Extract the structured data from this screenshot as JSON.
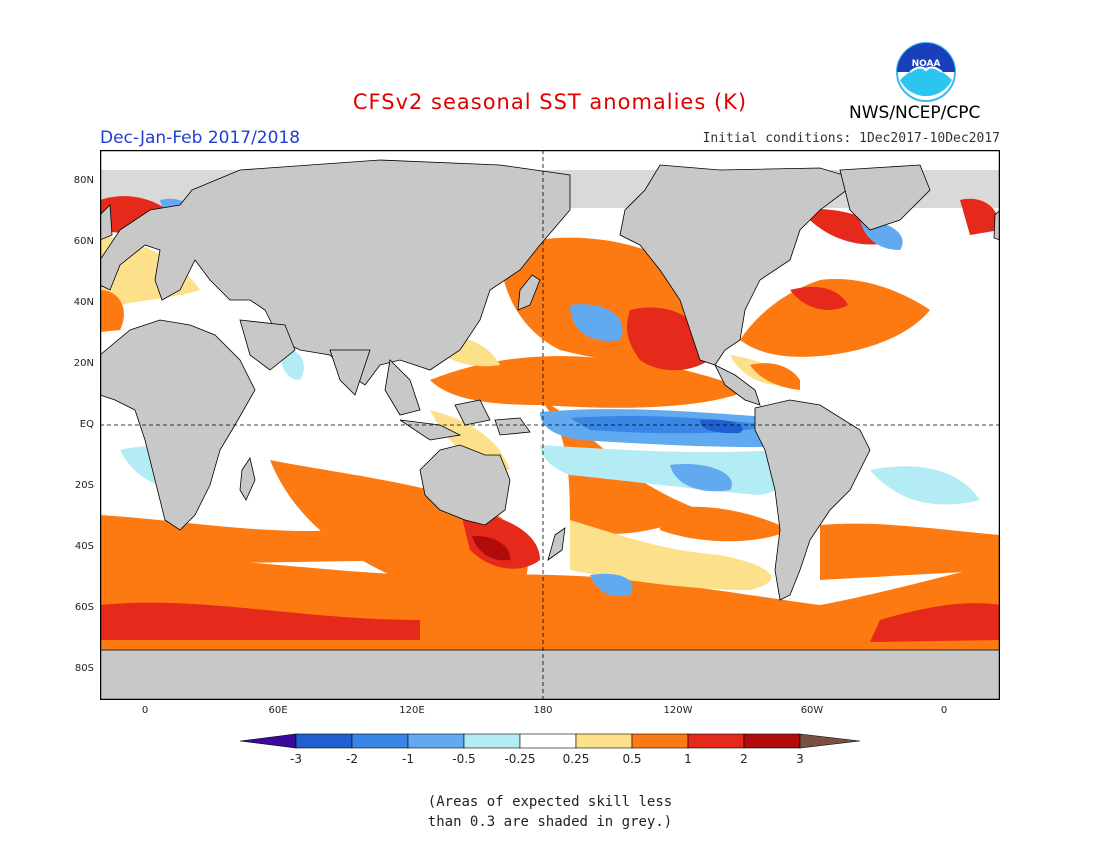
{
  "header": {
    "title": "CFSv2 seasonal SST anomalies (K)",
    "season": "Dec-Jan-Feb 2017/2018",
    "initial_conditions": "Initial conditions: 1Dec2017-10Dec2017",
    "agency": "NWS/NCEP/CPC",
    "logo_text": "NOAA"
  },
  "map": {
    "lat_labels": [
      "80N",
      "60N",
      "40N",
      "20N",
      "EQ",
      "20S",
      "40S",
      "60S",
      "80S"
    ],
    "lon_labels": [
      "0",
      "60E",
      "120E",
      "180",
      "120W",
      "60W",
      "0"
    ],
    "colors": {
      "land": "#c8c8c8",
      "ocean_neutral": "#ffffff",
      "coast": "#000000"
    }
  },
  "colorbar": {
    "labels": [
      "-3",
      "-2",
      "-1",
      "-0.5",
      "-0.25",
      "0.25",
      "0.5",
      "1",
      "2",
      "3"
    ],
    "colors": [
      "#3a0a9a",
      "#1f5fd0",
      "#3a86e6",
      "#62aaf0",
      "#b3ecf5",
      "#ffffff",
      "#fde08a",
      "#fd7a12",
      "#e5291a",
      "#b10c0c",
      "#7b5044"
    ]
  },
  "footnote": {
    "line1": "(Areas of expected skill less",
    "line2": "than 0.3 are shaded in grey.)"
  }
}
